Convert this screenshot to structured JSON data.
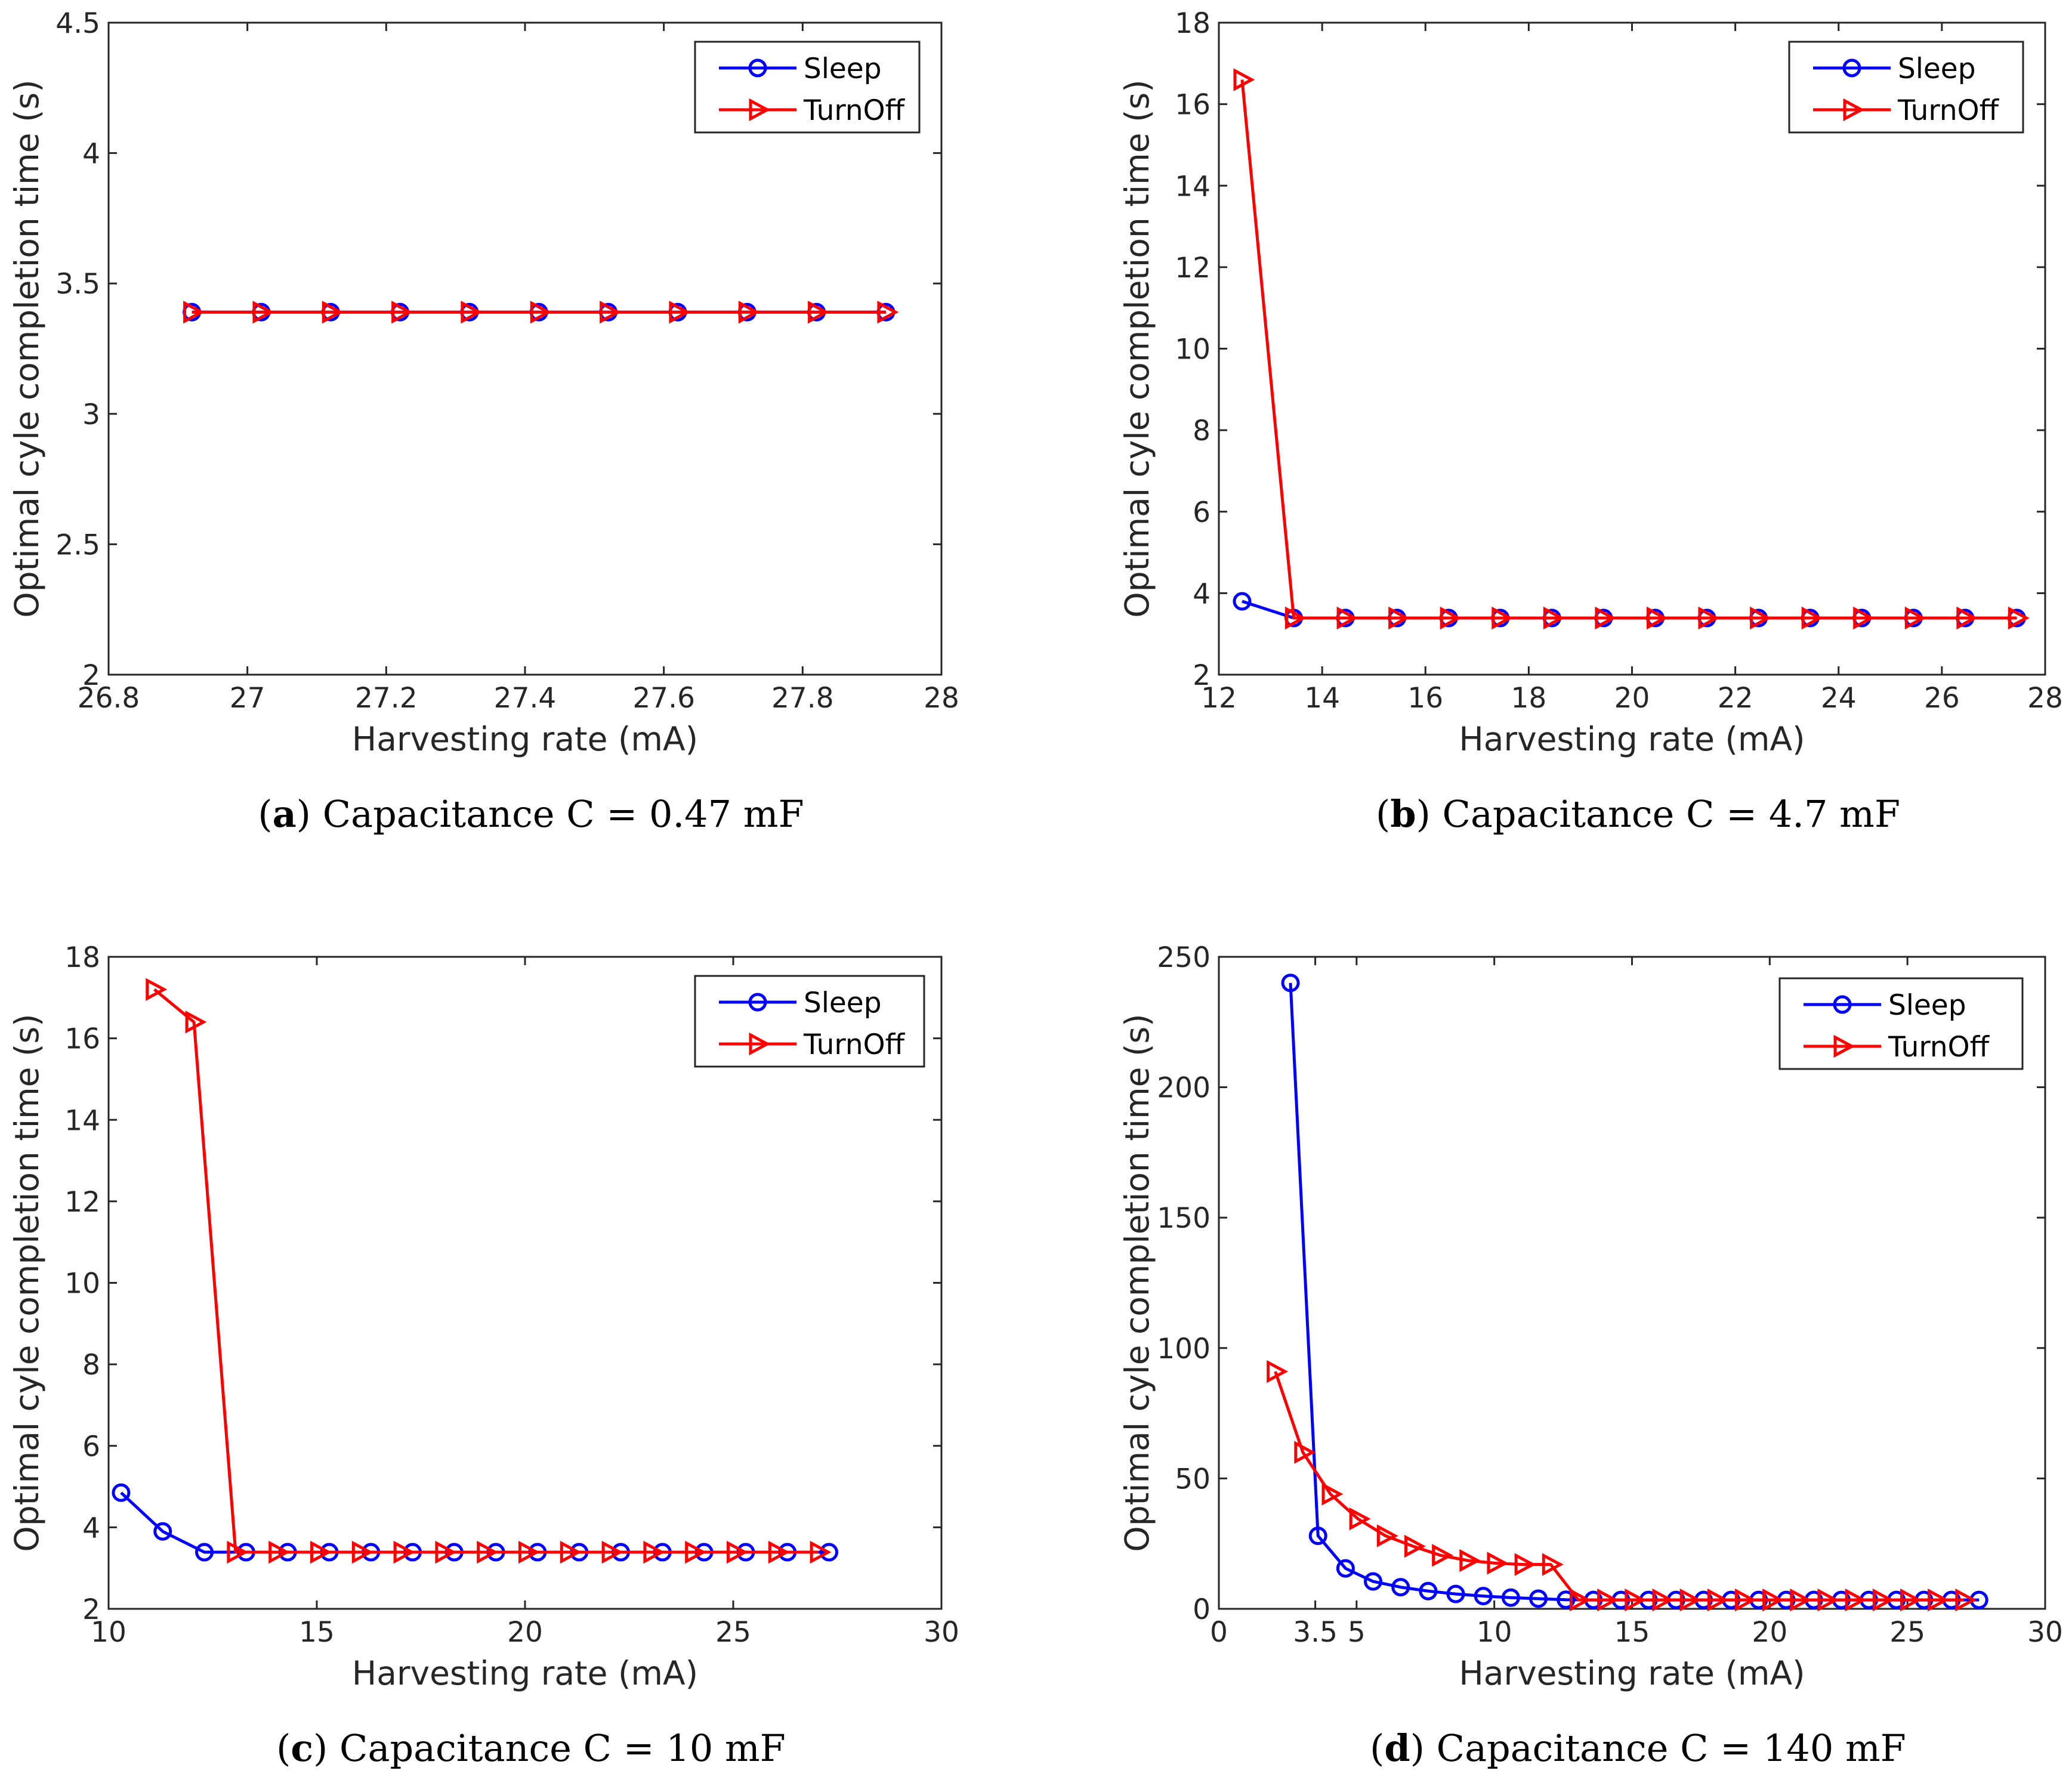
{
  "colors": {
    "sleep": "#0000ff",
    "turnoff": "#ff0000",
    "axis": "#262626"
  },
  "chart_data": [
    {
      "id": "a",
      "type": "line",
      "caption_letter": "a",
      "caption_text": "Capacitance C = 0.47 mF",
      "xlabel": "Harvesting rate (mA)",
      "ylabel": "Optimal cyle completion time (s)",
      "xlim": [
        26.8,
        28
      ],
      "ylim": [
        2,
        4.5
      ],
      "xticks": [
        26.8,
        27,
        27.2,
        27.4,
        27.6,
        27.8,
        28
      ],
      "xtick_labels": [
        "26.8",
        "27",
        "27.2",
        "27.4",
        "27.6",
        "27.8",
        "28"
      ],
      "yticks": [
        2,
        2.5,
        3,
        3.5,
        4,
        4.5
      ],
      "ytick_labels": [
        "2",
        "2.5",
        "3",
        "3.5",
        "4",
        "4.5"
      ],
      "legend_position": "top-right",
      "series": [
        {
          "name": "Sleep",
          "marker": "circle",
          "x": [
            26.92,
            27.02,
            27.12,
            27.22,
            27.32,
            27.42,
            27.52,
            27.62,
            27.72,
            27.82,
            27.92
          ],
          "y": [
            3.39,
            3.39,
            3.39,
            3.39,
            3.39,
            3.39,
            3.39,
            3.39,
            3.39,
            3.39,
            3.39
          ]
        },
        {
          "name": "TurnOff",
          "marker": "triangle-right",
          "x": [
            26.92,
            27.02,
            27.12,
            27.22,
            27.32,
            27.42,
            27.52,
            27.62,
            27.72,
            27.82,
            27.92
          ],
          "y": [
            3.39,
            3.39,
            3.39,
            3.39,
            3.39,
            3.39,
            3.39,
            3.39,
            3.39,
            3.39,
            3.39
          ]
        }
      ]
    },
    {
      "id": "b",
      "type": "line",
      "caption_letter": "b",
      "caption_text": "Capacitance C = 4.7 mF",
      "xlabel": "Harvesting rate (mA)",
      "ylabel": "Optimal cyle completion time (s)",
      "xlim": [
        12,
        28
      ],
      "ylim": [
        2,
        18
      ],
      "xticks": [
        12,
        14,
        16,
        18,
        20,
        22,
        24,
        26,
        28
      ],
      "xtick_labels": [
        "12",
        "14",
        "16",
        "18",
        "20",
        "22",
        "24",
        "26",
        "28"
      ],
      "yticks": [
        2,
        4,
        6,
        8,
        10,
        12,
        14,
        16,
        18
      ],
      "ytick_labels": [
        "2",
        "4",
        "6",
        "8",
        "10",
        "12",
        "14",
        "16",
        "18"
      ],
      "legend_position": "top-right",
      "series": [
        {
          "name": "Sleep",
          "marker": "circle",
          "x": [
            12.45,
            13.45,
            14.45,
            15.45,
            16.45,
            17.45,
            18.45,
            19.45,
            20.45,
            21.45,
            22.45,
            23.45,
            24.45,
            25.45,
            26.45,
            27.45
          ],
          "y": [
            3.8,
            3.39,
            3.39,
            3.39,
            3.39,
            3.39,
            3.39,
            3.39,
            3.39,
            3.39,
            3.39,
            3.39,
            3.39,
            3.39,
            3.39,
            3.39
          ]
        },
        {
          "name": "TurnOff",
          "marker": "triangle-right",
          "x": [
            12.45,
            13.45,
            14.45,
            15.45,
            16.45,
            17.45,
            18.45,
            19.45,
            20.45,
            21.45,
            22.45,
            23.45,
            24.45,
            25.45,
            26.45,
            27.45
          ],
          "y": [
            16.6,
            3.39,
            3.39,
            3.39,
            3.39,
            3.39,
            3.39,
            3.39,
            3.39,
            3.39,
            3.39,
            3.39,
            3.39,
            3.39,
            3.39,
            3.39
          ]
        }
      ]
    },
    {
      "id": "c",
      "type": "line",
      "caption_letter": "c",
      "caption_text": "Capacitance C = 10 mF",
      "xlabel": "Harvesting rate (mA)",
      "ylabel": "Optimal cyle completion time (s)",
      "xlim": [
        10,
        30
      ],
      "ylim": [
        2,
        18
      ],
      "xticks": [
        10,
        15,
        20,
        25,
        30
      ],
      "xtick_labels": [
        "10",
        "15",
        "20",
        "25",
        "30"
      ],
      "yticks": [
        2,
        4,
        6,
        8,
        10,
        12,
        14,
        16,
        18
      ],
      "ytick_labels": [
        "2",
        "4",
        "6",
        "8",
        "10",
        "12",
        "14",
        "16",
        "18"
      ],
      "legend_position": "top-right",
      "series": [
        {
          "name": "Sleep",
          "marker": "circle",
          "x": [
            10.3,
            11.3,
            12.3,
            13.3,
            14.3,
            15.3,
            16.3,
            17.3,
            18.3,
            19.3,
            20.3,
            21.3,
            22.3,
            23.3,
            24.3,
            25.3,
            26.3,
            27.3
          ],
          "y": [
            4.85,
            3.9,
            3.39,
            3.39,
            3.39,
            3.39,
            3.39,
            3.39,
            3.39,
            3.39,
            3.39,
            3.39,
            3.39,
            3.39,
            3.39,
            3.39,
            3.39,
            3.39
          ]
        },
        {
          "name": "TurnOff",
          "marker": "triangle-right",
          "x": [
            11.1,
            12.05,
            13.05,
            14.05,
            15.05,
            16.05,
            17.05,
            18.05,
            19.05,
            20.05,
            21.05,
            22.05,
            23.05,
            24.05,
            25.05,
            26.05,
            27.05
          ],
          "y": [
            17.2,
            16.4,
            3.39,
            3.39,
            3.39,
            3.39,
            3.39,
            3.39,
            3.39,
            3.39,
            3.39,
            3.39,
            3.39,
            3.39,
            3.39,
            3.39,
            3.39
          ]
        }
      ]
    },
    {
      "id": "d",
      "type": "line",
      "caption_letter": "d",
      "caption_text": "Capacitance C = 140 mF",
      "xlabel": "Harvesting rate (mA)",
      "ylabel": "Optimal cyle completion time (s)",
      "xlim": [
        0,
        30
      ],
      "ylim": [
        0,
        250
      ],
      "xticks": [
        0,
        3.5,
        5,
        10,
        15,
        20,
        25,
        30
      ],
      "xtick_labels": [
        "0",
        "3.5",
        "5",
        "10",
        "15",
        "20",
        "25",
        "30"
      ],
      "yticks": [
        0,
        50,
        100,
        150,
        200,
        250
      ],
      "ytick_labels": [
        "0",
        "50",
        "100",
        "150",
        "200",
        "250"
      ],
      "legend_position": "top-right",
      "series": [
        {
          "name": "Sleep",
          "marker": "circle",
          "x": [
            2.6,
            3.6,
            4.6,
            5.6,
            6.6,
            7.6,
            8.6,
            9.6,
            10.6,
            11.6,
            12.6,
            13.6,
            14.6,
            15.6,
            16.6,
            17.6,
            18.6,
            19.6,
            20.6,
            21.6,
            22.6,
            23.6,
            24.6,
            25.6,
            26.6,
            27.6
          ],
          "y": [
            240,
            28,
            15.5,
            10.5,
            8.3,
            6.8,
            5.7,
            4.9,
            4.3,
            3.9,
            3.5,
            3.4,
            3.4,
            3.4,
            3.4,
            3.4,
            3.4,
            3.4,
            3.4,
            3.4,
            3.4,
            3.4,
            3.4,
            3.4,
            3.4,
            3.4
          ]
        },
        {
          "name": "TurnOff",
          "marker": "triangle-right",
          "x": [
            2.05,
            3.05,
            4.05,
            5.05,
            6.05,
            7.05,
            8.05,
            9.05,
            10.05,
            11.05,
            12.05,
            13.05,
            14.05,
            15.05,
            16.05,
            17.05,
            18.05,
            19.05,
            20.05,
            21.05,
            22.05,
            23.05,
            24.05,
            25.05,
            26.05,
            27.05
          ],
          "y": [
            91,
            60,
            44,
            34.5,
            28,
            24,
            20.5,
            18.5,
            17.5,
            17,
            17,
            3.4,
            3.4,
            3.4,
            3.4,
            3.4,
            3.4,
            3.4,
            3.4,
            3.4,
            3.4,
            3.4,
            3.4,
            3.4,
            3.4,
            3.4
          ]
        }
      ]
    }
  ]
}
